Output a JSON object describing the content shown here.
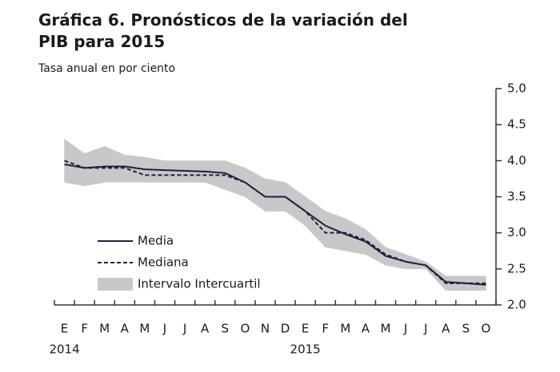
{
  "chart_data": {
    "type": "line",
    "title": "Gráfica 6. Pronósticos de la variación del PIB para 2015",
    "subtitle": "Tasa anual en por ciento",
    "categories": [
      "E",
      "F",
      "M",
      "A",
      "M",
      "J",
      "J",
      "A",
      "S",
      "O",
      "N",
      "D",
      "E",
      "F",
      "M",
      "A",
      "M",
      "J",
      "J",
      "A",
      "S",
      "O"
    ],
    "x_year_labels": [
      "2014",
      null,
      null,
      null,
      null,
      null,
      null,
      null,
      null,
      null,
      null,
      null,
      "2015",
      null,
      null,
      null,
      null,
      null,
      null,
      null,
      null,
      null
    ],
    "series": [
      {
        "name": "Media",
        "color": "#1c2140",
        "dash": false,
        "values": [
          3.95,
          3.9,
          3.92,
          3.92,
          3.88,
          3.87,
          3.86,
          3.85,
          3.83,
          3.7,
          3.5,
          3.5,
          3.3,
          3.1,
          2.98,
          2.88,
          2.68,
          2.6,
          2.55,
          2.32,
          2.3,
          2.28
        ]
      },
      {
        "name": "Mediana",
        "color": "#1c2140",
        "dash": true,
        "values": [
          4.0,
          3.9,
          3.9,
          3.9,
          3.8,
          3.8,
          3.8,
          3.8,
          3.8,
          3.7,
          3.5,
          3.5,
          3.3,
          3.0,
          3.0,
          2.9,
          2.7,
          2.6,
          2.55,
          2.3,
          2.3,
          2.3
        ]
      }
    ],
    "band": {
      "name": "Intervalo Intercuartil",
      "color": "#c8c8c8",
      "upper": [
        4.3,
        4.1,
        4.2,
        4.08,
        4.05,
        4.0,
        4.0,
        4.0,
        4.0,
        3.9,
        3.75,
        3.7,
        3.5,
        3.3,
        3.2,
        3.05,
        2.8,
        2.7,
        2.6,
        2.4,
        2.4,
        2.4
      ],
      "lower": [
        3.7,
        3.65,
        3.7,
        3.7,
        3.7,
        3.7,
        3.7,
        3.7,
        3.6,
        3.5,
        3.3,
        3.3,
        3.1,
        2.8,
        2.75,
        2.7,
        2.55,
        2.5,
        2.5,
        2.2,
        2.2,
        2.2
      ]
    },
    "ylim": [
      2.0,
      5.0
    ],
    "yticks": [
      {
        "value": 2,
        "label": "2.0"
      },
      2.5,
      {
        "value": 3,
        "label": "3.0"
      },
      3.5,
      {
        "value": 4,
        "label": "4.0"
      },
      4.5,
      {
        "value": 5,
        "label": "5.0"
      }
    ],
    "y_axis_side": "right",
    "legend": "lower-left"
  }
}
